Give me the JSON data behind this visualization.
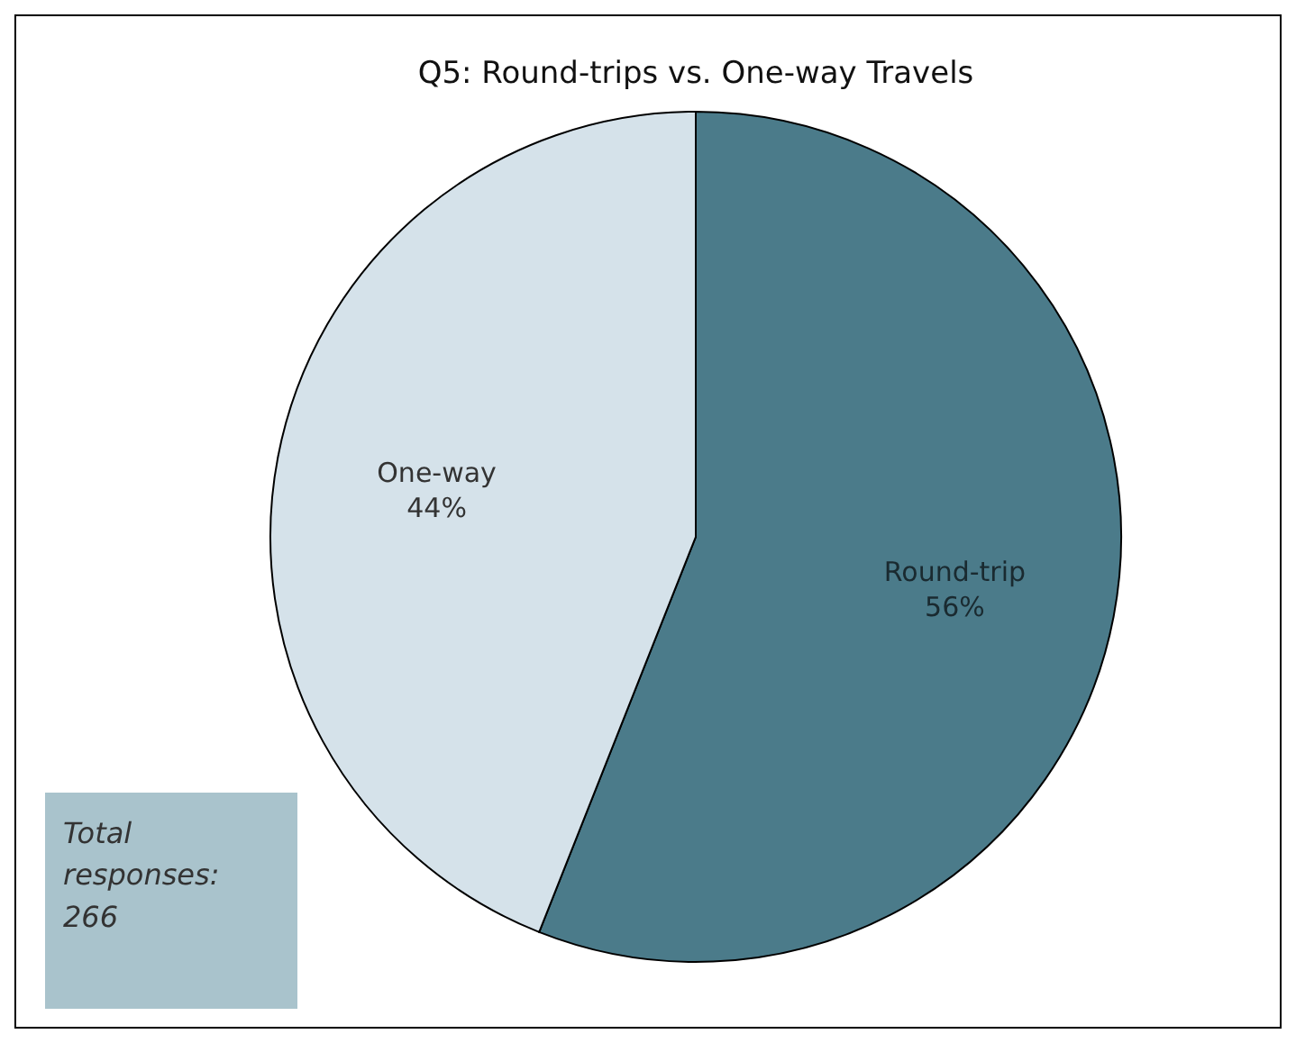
{
  "chart_data": {
    "type": "pie",
    "title": "Q5: Round-trips vs. One-way Travels",
    "categories": [
      "Round-trip",
      "One-way"
    ],
    "values": [
      56,
      44
    ],
    "colors": [
      "#4b7b8a",
      "#d5e2ea"
    ],
    "value_labels": [
      "56%",
      "44%"
    ],
    "annotations": [
      "Total responses: 266"
    ]
  }
}
